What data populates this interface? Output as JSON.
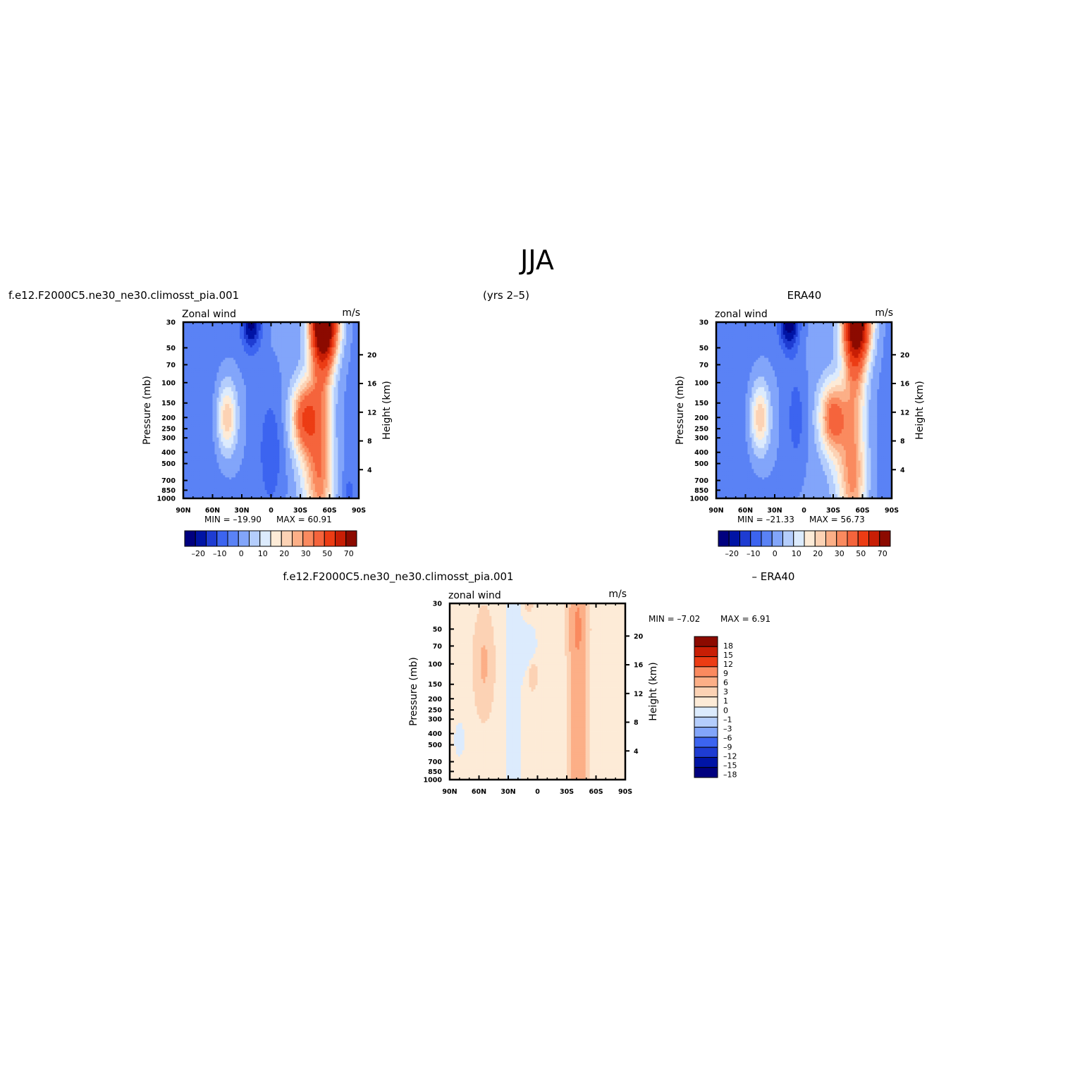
{
  "page_title": "JJA",
  "headers": {
    "top_left": "f.e12.F2000C5.ne30_ne30.climosst_pia.001",
    "top_center": "(yrs 2–5)",
    "top_right": "ERA40",
    "bottom_left": "f.e12.F2000C5.ne30_ne30.climosst_pia.001",
    "bottom_right": "– ERA40"
  },
  "chart_data": [
    {
      "id": "model",
      "type": "heatmap",
      "title_left": "Zonal wind",
      "units": "m/s",
      "ylabel": "Pressure (mb)",
      "ylabel_right": "Height (km)",
      "x": [
        90,
        60,
        30,
        0,
        -30,
        -60,
        -90
      ],
      "xtick_labels": [
        "90N",
        "60N",
        "30N",
        "0",
        "30S",
        "60S",
        "90S"
      ],
      "y_pressure": [
        30,
        50,
        70,
        100,
        150,
        200,
        250,
        300,
        400,
        500,
        700,
        850,
        1000
      ],
      "y_pressure_labels": [
        "30",
        "50",
        "70",
        "100",
        "150",
        "200",
        "250",
        "300",
        "400",
        "500",
        "700",
        "850",
        "1000"
      ],
      "y_height_km": [
        4,
        8,
        12,
        16,
        20
      ],
      "ylim_pressure": [
        1000,
        30
      ],
      "y_scale": "log",
      "min_text": "MIN =  –19.90",
      "max_text": "MAX =    60.91",
      "levels": [
        -25,
        -20,
        -15,
        -10,
        -5,
        0,
        5,
        10,
        15,
        20,
        25,
        30,
        40,
        50,
        60,
        70
      ],
      "colorbar_labels": [
        "–20",
        "–10",
        "0",
        "10",
        "20",
        "30",
        "50",
        "70"
      ],
      "colorbar_orientation": "horizontal",
      "features": [
        {
          "lat": 20,
          "p": 30,
          "u": -22,
          "wx": 10,
          "wy": 0.55
        },
        {
          "lat": 0,
          "p": 400,
          "u": -9,
          "wx": 14,
          "wy": 1.3
        },
        {
          "lat": -55,
          "p": 30,
          "u": 72,
          "wx": 14,
          "wy": 0.75
        },
        {
          "lat": -35,
          "p": 200,
          "u": 42,
          "wx": 14,
          "wy": 0.7
        },
        {
          "lat": -45,
          "p": 600,
          "u": 18,
          "wx": 16,
          "wy": 0.9
        },
        {
          "lat": 45,
          "p": 200,
          "u": 25,
          "wx": 10,
          "wy": 0.7
        },
        {
          "lat": -80,
          "p": 900,
          "u": -6,
          "wx": 6,
          "wy": 0.4
        }
      ]
    },
    {
      "id": "obs",
      "type": "heatmap",
      "title_left": "zonal wind",
      "units": "m/s",
      "ylabel": "Pressure (mb)",
      "ylabel_right": "Height (km)",
      "x": [
        90,
        60,
        30,
        0,
        -30,
        -60,
        -90
      ],
      "xtick_labels": [
        "90N",
        "60N",
        "30N",
        "0",
        "30S",
        "60S",
        "90S"
      ],
      "y_pressure": [
        30,
        50,
        70,
        100,
        150,
        200,
        250,
        300,
        400,
        500,
        700,
        850,
        1000
      ],
      "y_pressure_labels": [
        "30",
        "50",
        "70",
        "100",
        "150",
        "200",
        "250",
        "300",
        "400",
        "500",
        "700",
        "850",
        "1000"
      ],
      "y_height_km": [
        4,
        8,
        12,
        16,
        20
      ],
      "ylim_pressure": [
        1000,
        30
      ],
      "y_scale": "log",
      "min_text": "MIN =  –21.33",
      "max_text": "MAX =    56.73",
      "levels": [
        -25,
        -20,
        -15,
        -10,
        -5,
        0,
        5,
        10,
        15,
        20,
        25,
        30,
        40,
        50,
        60,
        70
      ],
      "colorbar_labels": [
        "–20",
        "–10",
        "0",
        "10",
        "20",
        "30",
        "50",
        "70"
      ],
      "colorbar_orientation": "horizontal",
      "features": [
        {
          "lat": 15,
          "p": 30,
          "u": -24,
          "wx": 10,
          "wy": 0.55
        },
        {
          "lat": 8,
          "p": 200,
          "u": -8,
          "wx": 10,
          "wy": 1.0
        },
        {
          "lat": -55,
          "p": 30,
          "u": 62,
          "wx": 14,
          "wy": 0.75
        },
        {
          "lat": -30,
          "p": 200,
          "u": 38,
          "wx": 14,
          "wy": 0.7
        },
        {
          "lat": -45,
          "p": 600,
          "u": 16,
          "wx": 16,
          "wy": 0.9
        },
        {
          "lat": 45,
          "p": 200,
          "u": 25,
          "wx": 10,
          "wy": 0.7
        }
      ]
    },
    {
      "id": "diff",
      "type": "heatmap",
      "title_left": "zonal wind",
      "units": "m/s",
      "ylabel": "Pressure (mb)",
      "ylabel_right": "Height (km)",
      "x": [
        90,
        60,
        30,
        0,
        -30,
        -60,
        -90
      ],
      "xtick_labels": [
        "90N",
        "60N",
        "30N",
        "0",
        "30S",
        "60S",
        "90S"
      ],
      "y_pressure": [
        30,
        50,
        70,
        100,
        150,
        200,
        250,
        300,
        400,
        500,
        700,
        850,
        1000
      ],
      "y_pressure_labels": [
        "30",
        "50",
        "70",
        "100",
        "150",
        "200",
        "250",
        "300",
        "400",
        "500",
        "700",
        "850",
        "1000"
      ],
      "y_height_km": [
        4,
        8,
        12,
        16,
        20
      ],
      "ylim_pressure": [
        1000,
        30
      ],
      "y_scale": "log",
      "min_text": "MIN =   –7.02",
      "max_text": "MAX =      6.91",
      "levels": [
        -18,
        -15,
        -12,
        -9,
        -6,
        -3,
        -1,
        0,
        1,
        3,
        6,
        9,
        12,
        15,
        18
      ],
      "colorbar_labels": [
        "18",
        "15",
        "12",
        "9",
        "6",
        "3",
        "1",
        "0",
        "–1",
        "–3",
        "–6",
        "–9",
        "–12",
        "–15",
        "–18"
      ],
      "colorbar_orientation": "vertical",
      "features": []
    }
  ],
  "colors": {
    "blues": [
      "#00007f",
      "#0014a5",
      "#1e3cd2",
      "#3c64f0",
      "#5a82f5",
      "#82a5fa",
      "#b4cdfc",
      "#dcebfd"
    ],
    "reds": [
      "#fdebd7",
      "#fcd2b4",
      "#fcaf87",
      "#fa8a5f",
      "#f5643c",
      "#ec3c14",
      "#c81e05",
      "#8c0a00"
    ],
    "diff_blues": [
      "#00007f",
      "#0014a5",
      "#1e3cd2",
      "#3c64f0",
      "#82a5fa",
      "#b4cdfc",
      "#dcebfd"
    ],
    "diff_reds": [
      "#fdebd7",
      "#fcd2b4",
      "#fcaf87",
      "#fa8a5f",
      "#ec3c14",
      "#c81e05",
      "#8c0a00"
    ]
  }
}
